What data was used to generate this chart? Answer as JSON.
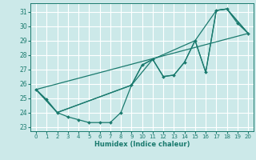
{
  "title": "",
  "xlabel": "Humidex (Indice chaleur)",
  "bg_color": "#cce9e9",
  "grid_color": "#ffffff",
  "line_color": "#1a7a6e",
  "xlim": [
    -0.5,
    20.5
  ],
  "ylim": [
    22.7,
    31.6
  ],
  "yticks": [
    23,
    24,
    25,
    26,
    27,
    28,
    29,
    30,
    31
  ],
  "xticks": [
    0,
    1,
    2,
    3,
    4,
    5,
    6,
    7,
    8,
    9,
    10,
    11,
    12,
    13,
    14,
    15,
    16,
    17,
    18,
    19,
    20
  ],
  "line1_x": [
    0,
    1,
    2,
    3,
    4,
    5,
    6,
    7,
    8,
    9,
    10,
    11,
    12,
    13,
    14,
    15,
    16,
    17,
    18,
    19,
    20
  ],
  "line1_y": [
    25.6,
    24.9,
    24.0,
    23.7,
    23.5,
    23.3,
    23.3,
    23.3,
    24.0,
    25.9,
    27.3,
    27.7,
    26.5,
    26.6,
    27.5,
    29.0,
    26.8,
    31.1,
    31.2,
    30.2,
    29.5
  ],
  "line2_x": [
    0,
    2,
    9,
    10,
    11,
    12,
    13,
    14,
    15,
    16,
    17,
    18,
    20
  ],
  "line2_y": [
    25.6,
    24.0,
    25.9,
    27.3,
    27.7,
    26.5,
    26.6,
    27.5,
    29.0,
    26.8,
    31.1,
    31.2,
    29.5
  ],
  "line3_x": [
    0,
    20
  ],
  "line3_y": [
    25.6,
    29.5
  ],
  "line4_x": [
    0,
    2,
    9,
    11,
    15,
    17,
    18,
    20
  ],
  "line4_y": [
    25.6,
    24.0,
    25.9,
    27.7,
    29.0,
    31.1,
    31.2,
    29.5
  ]
}
